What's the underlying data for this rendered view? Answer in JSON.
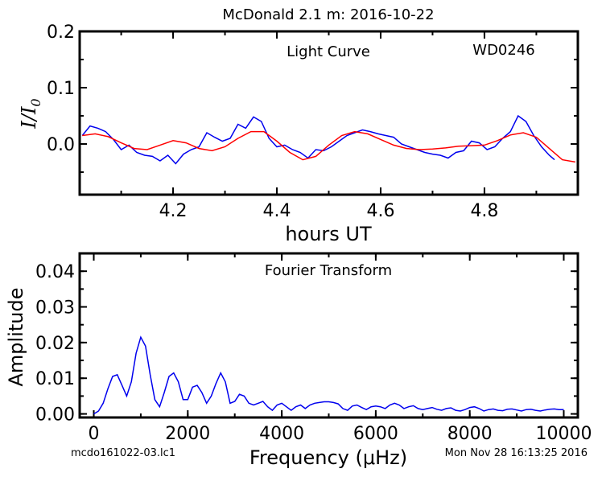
{
  "title": "McDonald 2.1 m:  2016-10-22",
  "footer_left": "mcdo161022-03.lc1",
  "footer_right": "Mon Nov 28 16:13:25 2016",
  "colors": {
    "data_line": "#0000ee",
    "model_line": "#ff0000",
    "fft_line": "#0000ee"
  },
  "chart_data": [
    {
      "type": "line",
      "panel": "light-curve",
      "annotation": "Light Curve",
      "object": "WD0246",
      "xlabel": "hours UT",
      "ylabel_main": "I/I",
      "ylabel_sub": "0",
      "xlim": [
        4.02,
        4.98
      ],
      "ylim": [
        -0.09,
        0.2
      ],
      "xticks": [
        4.2,
        4.4,
        4.6,
        4.8
      ],
      "xticklabels": [
        "4.2",
        "4.4",
        "4.6",
        "4.8"
      ],
      "yticks": [
        0.0,
        0.1,
        0.2
      ],
      "yticklabels": [
        "0.0",
        "0.1",
        "0.2"
      ],
      "series": [
        {
          "role": "observed",
          "x": [
            4.025,
            4.04,
            4.055,
            4.07,
            4.085,
            4.1,
            4.115,
            4.13,
            4.145,
            4.16,
            4.175,
            4.19,
            4.205,
            4.22,
            4.235,
            4.25,
            4.265,
            4.28,
            4.295,
            4.31,
            4.325,
            4.34,
            4.355,
            4.37,
            4.385,
            4.4,
            4.415,
            4.43,
            4.445,
            4.46,
            4.475,
            4.49,
            4.505,
            4.52,
            4.535,
            4.55,
            4.565,
            4.58,
            4.595,
            4.61,
            4.625,
            4.64,
            4.655,
            4.67,
            4.685,
            4.7,
            4.715,
            4.73,
            4.745,
            4.76,
            4.775,
            4.79,
            4.805,
            4.82,
            4.835,
            4.85,
            4.865,
            4.88,
            4.895,
            4.91,
            4.925,
            4.935
          ],
          "y": [
            0.015,
            0.032,
            0.028,
            0.022,
            0.008,
            -0.01,
            -0.002,
            -0.015,
            -0.02,
            -0.022,
            -0.03,
            -0.02,
            -0.035,
            -0.018,
            -0.01,
            -0.005,
            0.02,
            0.012,
            0.005,
            0.01,
            0.035,
            0.028,
            0.048,
            0.04,
            0.01,
            -0.005,
            -0.002,
            -0.01,
            -0.015,
            -0.025,
            -0.01,
            -0.012,
            -0.005,
            0.005,
            0.015,
            0.02,
            0.025,
            0.022,
            0.018,
            0.015,
            0.012,
            0.0,
            -0.005,
            -0.01,
            -0.015,
            -0.018,
            -0.02,
            -0.025,
            -0.015,
            -0.012,
            0.005,
            0.002,
            -0.01,
            -0.005,
            0.01,
            0.022,
            0.05,
            0.04,
            0.015,
            -0.005,
            -0.02,
            -0.028
          ]
        },
        {
          "role": "model",
          "x": [
            4.025,
            4.05,
            4.075,
            4.1,
            4.125,
            4.15,
            4.175,
            4.2,
            4.225,
            4.25,
            4.275,
            4.3,
            4.325,
            4.35,
            4.375,
            4.4,
            4.425,
            4.45,
            4.475,
            4.5,
            4.525,
            4.55,
            4.575,
            4.6,
            4.625,
            4.65,
            4.675,
            4.7,
            4.725,
            4.75,
            4.775,
            4.8,
            4.825,
            4.85,
            4.875,
            4.9,
            4.925,
            4.95,
            4.975
          ],
          "y": [
            0.015,
            0.018,
            0.013,
            0.002,
            -0.008,
            -0.01,
            -0.002,
            0.006,
            0.002,
            -0.008,
            -0.012,
            -0.005,
            0.01,
            0.022,
            0.022,
            0.005,
            -0.015,
            -0.028,
            -0.022,
            -0.002,
            0.015,
            0.022,
            0.018,
            0.008,
            -0.002,
            -0.008,
            -0.01,
            -0.009,
            -0.007,
            -0.004,
            -0.003,
            -0.002,
            0.006,
            0.016,
            0.02,
            0.012,
            -0.008,
            -0.028,
            -0.032
          ]
        }
      ]
    },
    {
      "type": "line",
      "panel": "fourier-transform",
      "annotation": "Fourier Transform",
      "xlabel": "Frequency (μHz)",
      "ylabel": "Amplitude",
      "xlim": [
        -300,
        10300
      ],
      "ylim": [
        -0.001,
        0.045
      ],
      "xticks": [
        0,
        2000,
        4000,
        6000,
        8000,
        10000
      ],
      "xticklabels": [
        "0",
        "2000",
        "4000",
        "6000",
        "8000",
        "10000"
      ],
      "yticks": [
        0.0,
        0.01,
        0.02,
        0.03,
        0.04
      ],
      "yticklabels": [
        "0.00",
        "0.01",
        "0.02",
        "0.03",
        "0.04"
      ],
      "series": [
        {
          "role": "amplitude",
          "x": [
            0,
            100,
            200,
            300,
            400,
            500,
            600,
            700,
            800,
            900,
            1000,
            1100,
            1200,
            1300,
            1400,
            1500,
            1600,
            1700,
            1800,
            1900,
            2000,
            2100,
            2200,
            2300,
            2400,
            2500,
            2600,
            2700,
            2800,
            2900,
            3000,
            3100,
            3200,
            3300,
            3400,
            3500,
            3600,
            3700,
            3800,
            3900,
            4000,
            4100,
            4200,
            4300,
            4400,
            4500,
            4600,
            4700,
            4800,
            4900,
            5000,
            5100,
            5200,
            5300,
            5400,
            5500,
            5600,
            5700,
            5800,
            5900,
            6000,
            6100,
            6200,
            6300,
            6400,
            6500,
            6600,
            6700,
            6800,
            6900,
            7000,
            7100,
            7200,
            7300,
            7400,
            7500,
            7600,
            7700,
            7800,
            7900,
            8000,
            8100,
            8200,
            8300,
            8400,
            8500,
            8600,
            8700,
            8800,
            8900,
            9000,
            9100,
            9200,
            9300,
            9400,
            9500,
            9600,
            9700,
            9800,
            9900,
            10000
          ],
          "y": [
            0.0,
            0.0008,
            0.003,
            0.007,
            0.0105,
            0.011,
            0.008,
            0.005,
            0.009,
            0.017,
            0.0215,
            0.019,
            0.011,
            0.004,
            0.002,
            0.006,
            0.0105,
            0.0115,
            0.009,
            0.004,
            0.004,
            0.0075,
            0.008,
            0.006,
            0.003,
            0.005,
            0.0085,
            0.0115,
            0.009,
            0.003,
            0.0035,
            0.0055,
            0.005,
            0.003,
            0.0025,
            0.003,
            0.0035,
            0.002,
            0.001,
            0.0025,
            0.003,
            0.002,
            0.001,
            0.002,
            0.0025,
            0.0015,
            0.0025,
            0.003,
            0.0032,
            0.0034,
            0.0034,
            0.0032,
            0.0028,
            0.0015,
            0.001,
            0.0022,
            0.0025,
            0.0018,
            0.0012,
            0.002,
            0.0022,
            0.002,
            0.0015,
            0.0025,
            0.003,
            0.0025,
            0.0015,
            0.002,
            0.0023,
            0.0015,
            0.0012,
            0.0015,
            0.0018,
            0.0013,
            0.001,
            0.0015,
            0.0017,
            0.001,
            0.0008,
            0.0012,
            0.0018,
            0.002,
            0.0015,
            0.0008,
            0.0012,
            0.0014,
            0.001,
            0.0009,
            0.0013,
            0.0014,
            0.0011,
            0.0008,
            0.0012,
            0.0013,
            0.001,
            0.0008,
            0.0011,
            0.0013,
            0.0014,
            0.0012,
            0.0012
          ]
        }
      ]
    }
  ]
}
